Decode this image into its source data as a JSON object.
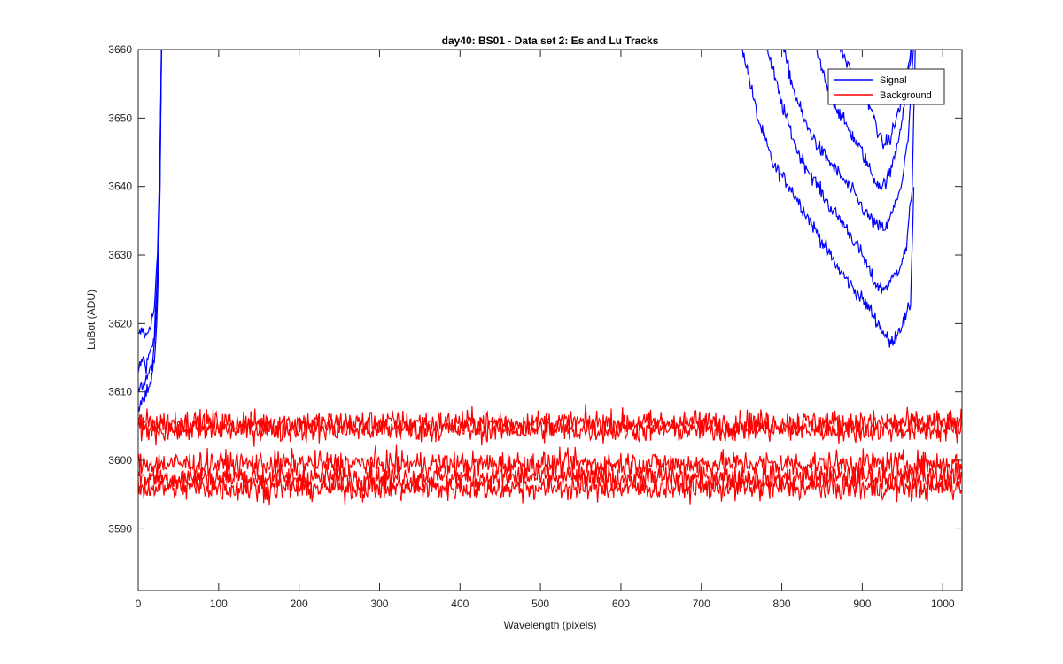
{
  "chart_data": {
    "type": "line",
    "title": "day40: BS01 - Data set 2: Es and Lu Tracks",
    "xlabel": "Wavelength (pixels)",
    "ylabel": "LuBot (ADU)",
    "xlim": [
      0,
      1024
    ],
    "ylim": [
      3581,
      3660
    ],
    "xticks": [
      0,
      100,
      200,
      300,
      400,
      500,
      600,
      700,
      800,
      900,
      1000
    ],
    "yticks": [
      3590,
      3600,
      3610,
      3620,
      3630,
      3640,
      3650,
      3660
    ],
    "grid": false,
    "legend": {
      "position": "top-right",
      "entries": [
        "Signal",
        "Background"
      ]
    },
    "colors": {
      "Signal": "#0000ff",
      "Background": "#ff0000"
    },
    "series": [
      {
        "name": "Signal",
        "color": "#0000ff",
        "traces": [
          {
            "x": [
              0,
              5,
              10,
              15,
              20,
              24,
              27,
              29
            ],
            "y": [
              3618,
              3619,
              3618,
              3620,
              3622,
              3630,
              3645,
              3661
            ]
          },
          {
            "x": [
              0,
              5,
              10,
              15,
              20,
              24,
              27,
              29
            ],
            "y": [
              3613,
              3615,
              3614,
              3616,
              3618,
              3628,
              3642,
              3661
            ]
          },
          {
            "x": [
              0,
              5,
              10,
              15,
              20,
              24,
              27,
              29
            ],
            "y": [
              3610,
              3611,
              3612,
              3613,
              3616,
              3625,
              3640,
              3661
            ]
          },
          {
            "x": [
              0,
              5,
              10,
              15,
              20,
              24,
              27,
              29
            ],
            "y": [
              3608,
              3609,
              3610,
              3611,
              3614,
              3623,
              3638,
              3661
            ]
          },
          {
            "x": [
              750,
              770,
              790,
              810,
              830,
              850,
              870,
              890,
              910,
              925,
              935,
              945,
              955,
              960,
              964
            ],
            "y": [
              3661,
              3650,
              3643,
              3640,
              3636,
              3632,
              3628,
              3625,
              3622,
              3619,
              3617,
              3619,
              3621,
              3623,
              3640
            ]
          },
          {
            "x": [
              780,
              800,
              820,
              840,
              860,
              880,
              900,
              915,
              925,
              935,
              945,
              955,
              962,
              966
            ],
            "y": [
              3661,
              3652,
              3645,
              3641,
              3637,
              3634,
              3630,
              3626,
              3625,
              3626,
              3628,
              3631,
              3640,
              3661
            ]
          },
          {
            "x": [
              800,
              815,
              830,
              850,
              870,
              890,
              905,
              920,
              930,
              940,
              950,
              958,
              964
            ],
            "y": [
              3661,
              3654,
              3649,
              3645,
              3642,
              3639,
              3636,
              3634,
              3634,
              3637,
              3641,
              3648,
              3661
            ]
          },
          {
            "x": [
              840,
              855,
              870,
              885,
              900,
              915,
              925,
              935,
              945,
              955,
              962
            ],
            "y": [
              3661,
              3655,
              3651,
              3648,
              3645,
              3641,
              3640,
              3642,
              3647,
              3654,
              3661
            ]
          },
          {
            "x": [
              870,
              885,
              900,
              915,
              925,
              935,
              945,
              955,
              962
            ],
            "y": [
              3661,
              3657,
              3654,
              3650,
              3646,
              3647,
              3651,
              3656,
              3661
            ]
          }
        ]
      },
      {
        "name": "Background",
        "color": "#ff0000",
        "traces": [
          {
            "x": [
              0,
              100,
              200,
              300,
              400,
              500,
              600,
              700,
              800,
              900,
              1000,
              1024
            ],
            "y": [
              3605.5,
              3605.5,
              3605.5,
              3605.5,
              3605.5,
              3605.5,
              3605.5,
              3605.5,
              3605.5,
              3605.5,
              3605.5,
              3605.5
            ]
          },
          {
            "x": [
              0,
              100,
              200,
              300,
              400,
              500,
              600,
              700,
              800,
              900,
              1000,
              1024
            ],
            "y": [
              3604.5,
              3604.5,
              3604.5,
              3604.5,
              3604.5,
              3604.5,
              3604.5,
              3604.5,
              3604.5,
              3604.5,
              3604.5,
              3604.5
            ]
          },
          {
            "x": [
              0,
              100,
              200,
              300,
              400,
              500,
              600,
              700,
              800,
              900,
              1000,
              1024
            ],
            "y": [
              3599.5,
              3599.5,
              3599.5,
              3599.5,
              3599.5,
              3599.5,
              3599.5,
              3599.5,
              3599.5,
              3599.5,
              3599.5,
              3599.5
            ]
          },
          {
            "x": [
              0,
              100,
              200,
              300,
              400,
              500,
              600,
              700,
              800,
              900,
              1000,
              1024
            ],
            "y": [
              3597.5,
              3597.5,
              3597.5,
              3597.5,
              3597.5,
              3597.5,
              3597.5,
              3597.5,
              3597.5,
              3597.5,
              3597.5,
              3597.5
            ]
          },
          {
            "x": [
              0,
              100,
              200,
              300,
              400,
              500,
              600,
              700,
              800,
              900,
              1000,
              1024
            ],
            "y": [
              3596,
              3596,
              3596,
              3596,
              3596,
              3596,
              3596,
              3596,
              3596,
              3596,
              3596,
              3596
            ]
          }
        ]
      }
    ]
  }
}
